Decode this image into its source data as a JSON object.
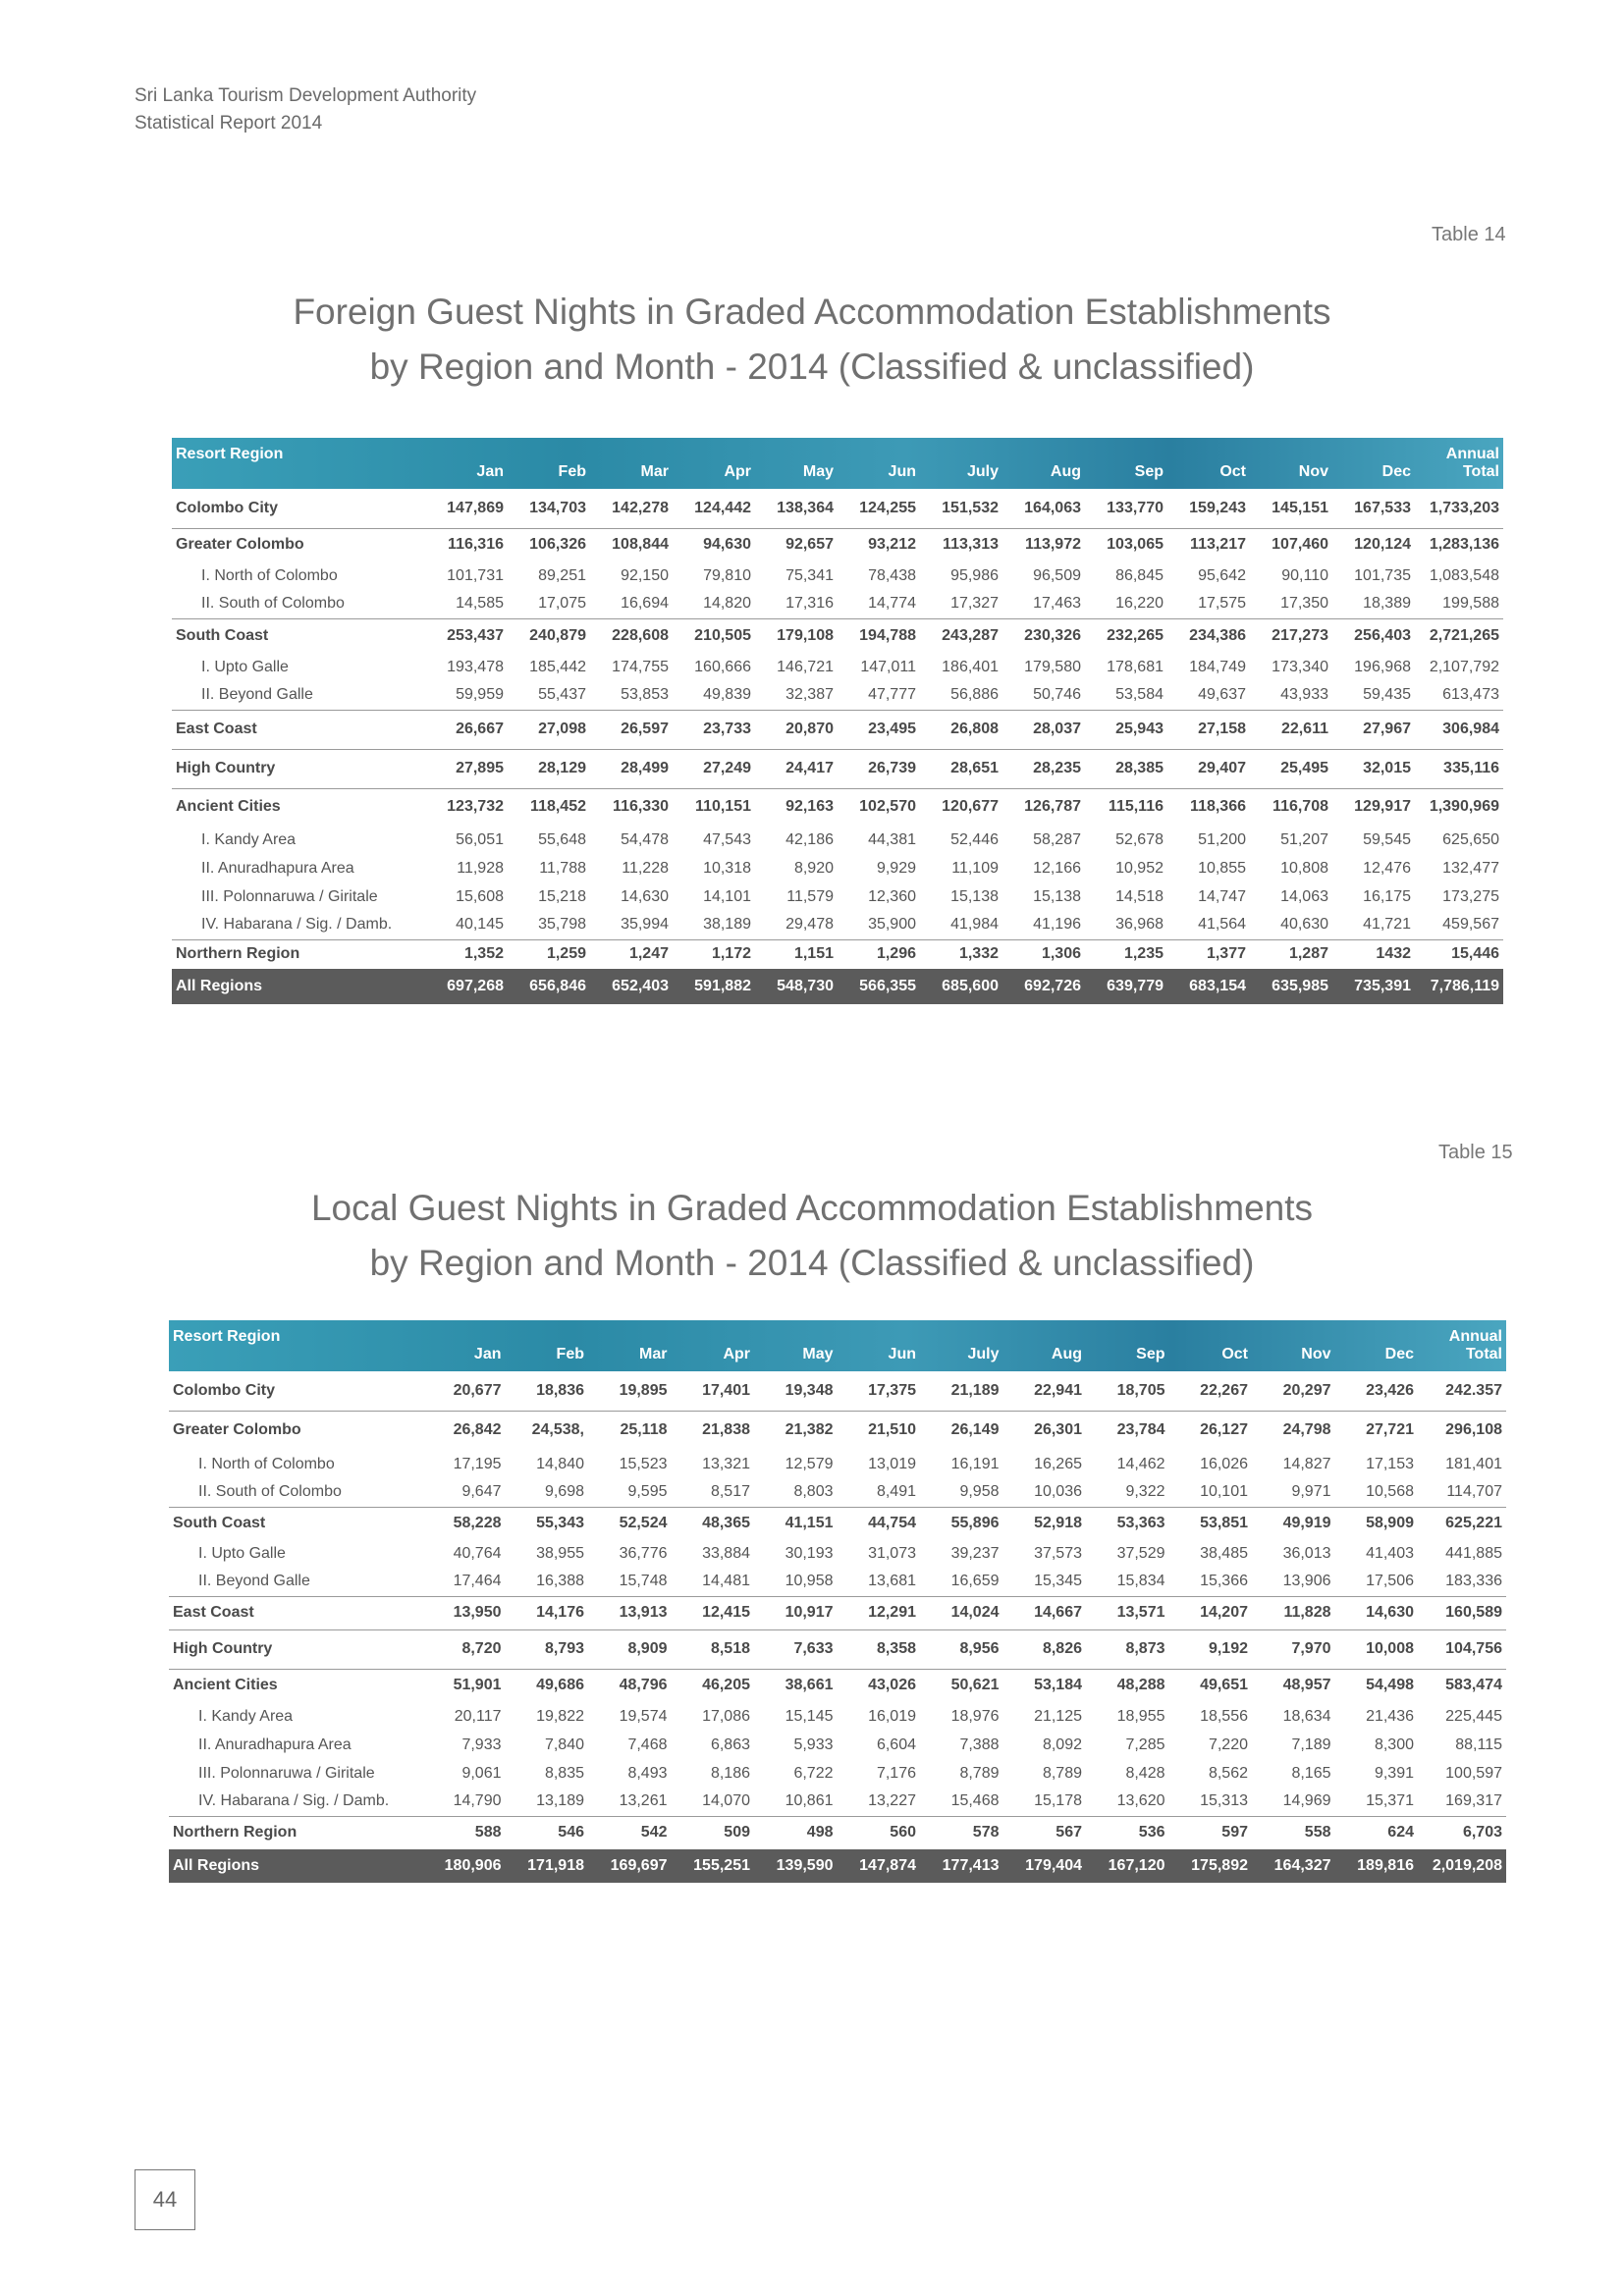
{
  "header": {
    "line1": "Sri Lanka Tourism Development Authority",
    "line2": "Statistical Report 2014"
  },
  "page_number": "44",
  "columns": [
    "Jan",
    "Feb",
    "Mar",
    "Apr",
    "May",
    "Jun",
    "July",
    "Aug",
    "Sep",
    "Oct",
    "Nov",
    "Dec"
  ],
  "col_header_region": "Resort Region",
  "col_header_annual_top": "Annual",
  "col_header_annual_bottom": "Total",
  "table14": {
    "label": "Table 14",
    "title_line1": "Foreign Guest Nights in Graded Accommodation Establishments",
    "title_line2": "by Region and Month - 2014 (Classified & unclassified)",
    "rows": [
      {
        "label": "Colombo City",
        "type": "main",
        "values": [
          "147,869",
          "134,703",
          "142,278",
          "124,442",
          "138,364",
          "124,255",
          "151,532",
          "164,063",
          "133,770",
          "159,243",
          "145,151",
          "167,533",
          "1,733,203"
        ]
      },
      {
        "label": "Greater Colombo",
        "type": "main",
        "values": [
          "116,316",
          "106,326",
          "108,844",
          "94,630",
          "92,657",
          "93,212",
          "113,313",
          "113,972",
          "103,065",
          "113,217",
          "107,460",
          "120,124",
          "1,283,136"
        ]
      },
      {
        "label": "I.   North of Colombo",
        "type": "sub",
        "values": [
          "101,731",
          "89,251",
          "92,150",
          "79,810",
          "75,341",
          "78,438",
          "95,986",
          "96,509",
          "86,845",
          "95,642",
          "90,110",
          "101,735",
          "1,083,548"
        ]
      },
      {
        "label": "II.  South of Colombo",
        "type": "sub",
        "values": [
          "14,585",
          "17,075",
          "16,694",
          "14,820",
          "17,316",
          "14,774",
          "17,327",
          "17,463",
          "16,220",
          "17,575",
          "17,350",
          "18,389",
          "199,588"
        ]
      },
      {
        "label": "South Coast",
        "type": "main",
        "values": [
          "253,437",
          "240,879",
          "228,608",
          "210,505",
          "179,108",
          "194,788",
          "243,287",
          "230,326",
          "232,265",
          "234,386",
          "217,273",
          "256,403",
          "2,721,265"
        ]
      },
      {
        "label": "I.   Upto Galle",
        "type": "sub",
        "values": [
          "193,478",
          "185,442",
          "174,755",
          "160,666",
          "146,721",
          "147,011",
          "186,401",
          "179,580",
          "178,681",
          "184,749",
          "173,340",
          "196,968",
          "2,107,792"
        ]
      },
      {
        "label": "II.  Beyond Galle",
        "type": "sub",
        "values": [
          "59,959",
          "55,437",
          "53,853",
          "49,839",
          "32,387",
          "47,777",
          "56,886",
          "50,746",
          "53,584",
          "49,637",
          "43,933",
          "59,435",
          "613,473"
        ]
      },
      {
        "label": "East Coast",
        "type": "main",
        "values": [
          "26,667",
          "27,098",
          "26,597",
          "23,733",
          "20,870",
          "23,495",
          "26,808",
          "28,037",
          "25,943",
          "27,158",
          "22,611",
          "27,967",
          "306,984"
        ]
      },
      {
        "label": "High Country",
        "type": "main",
        "values": [
          "27,895",
          "28,129",
          "28,499",
          "27,249",
          "24,417",
          "26,739",
          "28,651",
          "28,235",
          "28,385",
          "29,407",
          "25,495",
          "32,015",
          "335,116"
        ]
      },
      {
        "label": "Ancient Cities",
        "type": "main",
        "values": [
          "123,732",
          "118,452",
          "116,330",
          "110,151",
          "92,163",
          "102,570",
          "120,677",
          "126,787",
          "115,116",
          "118,366",
          "116,708",
          "129,917",
          "1,390,969"
        ]
      },
      {
        "label": "I.   Kandy Area",
        "type": "sub",
        "values": [
          "56,051",
          "55,648",
          "54,478",
          "47,543",
          "42,186",
          "44,381",
          "52,446",
          "58,287",
          "52,678",
          "51,200",
          "51,207",
          "59,545",
          "625,650"
        ]
      },
      {
        "label": "II.  Anuradhapura Area",
        "type": "sub",
        "values": [
          "11,928",
          "11,788",
          "11,228",
          "10,318",
          "8,920",
          "9,929",
          "11,109",
          "12,166",
          "10,952",
          "10,855",
          "10,808",
          "12,476",
          "132,477"
        ]
      },
      {
        "label": "III. Polonnaruwa / Giritale",
        "type": "sub",
        "values": [
          "15,608",
          "15,218",
          "14,630",
          "14,101",
          "11,579",
          "12,360",
          "15,138",
          "15,138",
          "14,518",
          "14,747",
          "14,063",
          "16,175",
          "173,275"
        ]
      },
      {
        "label": "IV. Habarana / Sig. / Damb.",
        "type": "sub",
        "values": [
          "40,145",
          "35,798",
          "35,994",
          "38,189",
          "29,478",
          "35,900",
          "41,984",
          "41,196",
          "36,968",
          "41,564",
          "40,630",
          "41,721",
          "459,567"
        ]
      },
      {
        "label": "Northern Region",
        "type": "main",
        "values": [
          "1,352",
          "1,259",
          "1,247",
          "1,172",
          "1,151",
          "1,296",
          "1,332",
          "1,306",
          "1,235",
          "1,377",
          "1,287",
          "1432",
          "15,446"
        ]
      },
      {
        "label": "All Regions",
        "type": "total",
        "values": [
          "697,268",
          "656,846",
          "652,403",
          "591,882",
          "548,730",
          "566,355",
          "685,600",
          "692,726",
          "639,779",
          "683,154",
          "635,985",
          "735,391",
          "7,786,119"
        ]
      }
    ]
  },
  "table15": {
    "label": "Table 15",
    "title_line1": "Local Guest Nights in Graded Accommodation Establishments",
    "title_line2": "by Region and Month - 2014 (Classified & unclassified)",
    "rows": [
      {
        "label": "Colombo City",
        "type": "main",
        "values": [
          "20,677",
          "18,836",
          "19,895",
          "17,401",
          "19,348",
          "17,375",
          "21,189",
          "22,941",
          "18,705",
          "22,267",
          "20,297",
          "23,426",
          "242.357"
        ]
      },
      {
        "label": "Greater Colombo",
        "type": "main",
        "values": [
          "26,842",
          "24,538,",
          "25,118",
          "21,838",
          "21,382",
          "21,510",
          "26,149",
          "26,301",
          "23,784",
          "26,127",
          "24,798",
          "27,721",
          "296,108"
        ]
      },
      {
        "label": "I.   North of Colombo",
        "type": "sub",
        "values": [
          "17,195",
          "14,840",
          "15,523",
          "13,321",
          "12,579",
          "13,019",
          "16,191",
          "16,265",
          "14,462",
          "16,026",
          "14,827",
          "17,153",
          "181,401"
        ]
      },
      {
        "label": "II.  South of Colombo",
        "type": "sub",
        "values": [
          "9,647",
          "9,698",
          "9,595",
          "8,517",
          "8,803",
          "8,491",
          "9,958",
          "10,036",
          "9,322",
          "10,101",
          "9,971",
          "10,568",
          "114,707"
        ]
      },
      {
        "label": "South Coast",
        "type": "main",
        "values": [
          "58,228",
          "55,343",
          "52,524",
          "48,365",
          "41,151",
          "44,754",
          "55,896",
          "52,918",
          "53,363",
          "53,851",
          "49,919",
          "58,909",
          "625,221"
        ]
      },
      {
        "label": "I.   Upto Galle",
        "type": "sub",
        "values": [
          "40,764",
          "38,955",
          "36,776",
          "33,884",
          "30,193",
          "31,073",
          "39,237",
          "37,573",
          "37,529",
          "38,485",
          "36,013",
          "41,403",
          "441,885"
        ]
      },
      {
        "label": "II.  Beyond Galle",
        "type": "sub",
        "values": [
          "17,464",
          "16,388",
          "15,748",
          "14,481",
          "10,958",
          "13,681",
          "16,659",
          "15,345",
          "15,834",
          "15,366",
          "13,906",
          "17,506",
          "183,336"
        ]
      },
      {
        "label": "East Coast",
        "type": "main",
        "values": [
          "13,950",
          "14,176",
          "13,913",
          "12,415",
          "10,917",
          "12,291",
          "14,024",
          "14,667",
          "13,571",
          "14,207",
          "11,828",
          "14,630",
          "160,589"
        ]
      },
      {
        "label": "High Country",
        "type": "main",
        "values": [
          "8,720",
          "8,793",
          "8,909",
          "8,518",
          "7,633",
          "8,358",
          "8,956",
          "8,826",
          "8,873",
          "9,192",
          "7,970",
          "10,008",
          "104,756"
        ]
      },
      {
        "label": "Ancient Cities",
        "type": "main",
        "values": [
          "51,901",
          "49,686",
          "48,796",
          "46,205",
          "38,661",
          "43,026",
          "50,621",
          "53,184",
          "48,288",
          "49,651",
          "48,957",
          "54,498",
          "583,474"
        ]
      },
      {
        "label": "I.   Kandy Area",
        "type": "sub",
        "values": [
          "20,117",
          "19,822",
          "19,574",
          "17,086",
          "15,145",
          "16,019",
          "18,976",
          "21,125",
          "18,955",
          "18,556",
          "18,634",
          "21,436",
          "225,445"
        ]
      },
      {
        "label": "II.  Anuradhapura Area",
        "type": "sub",
        "values": [
          "7,933",
          "7,840",
          "7,468",
          "6,863",
          "5,933",
          "6,604",
          "7,388",
          "8,092",
          "7,285",
          "7,220",
          "7,189",
          "8,300",
          "88,115"
        ]
      },
      {
        "label": "III. Polonnaruwa / Giritale",
        "type": "sub",
        "values": [
          "9,061",
          "8,835",
          "8,493",
          "8,186",
          "6,722",
          "7,176",
          "8,789",
          "8,789",
          "8,428",
          "8,562",
          "8,165",
          "9,391",
          "100,597"
        ]
      },
      {
        "label": "IV. Habarana / Sig. / Damb.",
        "type": "sub",
        "values": [
          "14,790",
          "13,189",
          "13,261",
          "14,070",
          "10,861",
          "13,227",
          "15,468",
          "15,178",
          "13,620",
          "15,313",
          "14,969",
          "15,371",
          "169,317"
        ]
      },
      {
        "label": "Northern Region",
        "type": "main",
        "values": [
          "588",
          "546",
          "542",
          "509",
          "498",
          "560",
          "578",
          "567",
          "536",
          "597",
          "558",
          "624",
          "6,703"
        ]
      },
      {
        "label": "All Regions",
        "type": "total",
        "values": [
          "180,906",
          "171,918",
          "169,697",
          "155,251",
          "139,590",
          "147,874",
          "177,413",
          "179,404",
          "167,120",
          "175,892",
          "164,327",
          "189,816",
          "2,019,208"
        ]
      }
    ]
  }
}
